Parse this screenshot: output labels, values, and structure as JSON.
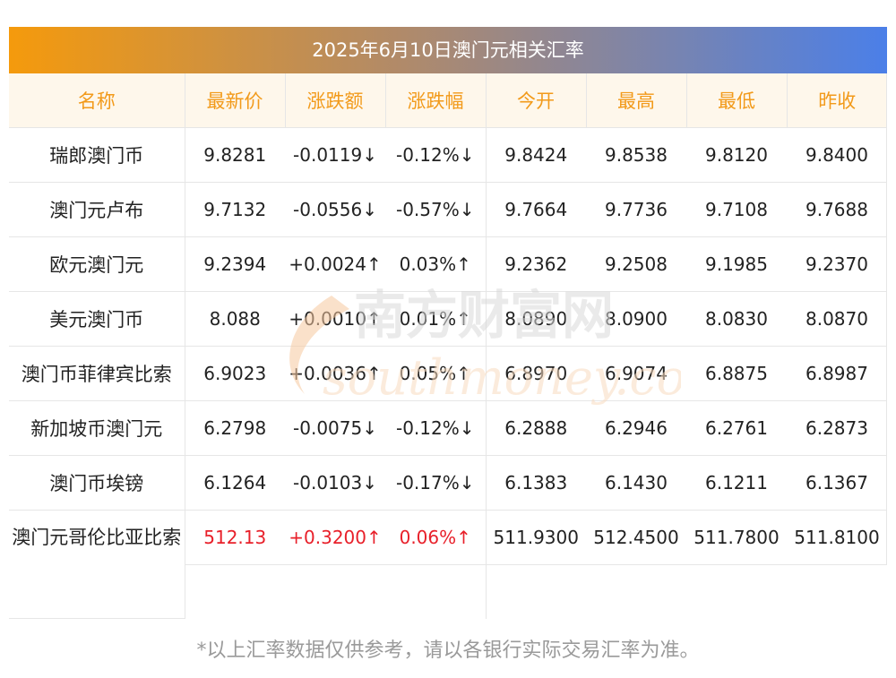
{
  "title": "2025年6月10日澳门元相关汇率",
  "headers": [
    "名称",
    "最新价",
    "涨跌额",
    "涨跌幅",
    "今开",
    "最高",
    "最低",
    "昨收"
  ],
  "rows": [
    {
      "name": "瑞郎澳门币",
      "latest": "9.8281",
      "change": "-0.0119↓",
      "pct": "-0.12%↓",
      "open": "9.8424",
      "high": "9.8538",
      "low": "9.8120",
      "prev": "9.8400",
      "dir": "down"
    },
    {
      "name": "澳门元卢布",
      "latest": "9.7132",
      "change": "-0.0556↓",
      "pct": "-0.57%↓",
      "open": "9.7664",
      "high": "9.7736",
      "low": "9.7108",
      "prev": "9.7688",
      "dir": "down"
    },
    {
      "name": "欧元澳门元",
      "latest": "9.2394",
      "change": "+0.0024↑",
      "pct": "0.03%↑",
      "open": "9.2362",
      "high": "9.2508",
      "low": "9.1985",
      "prev": "9.2370",
      "dir": "up"
    },
    {
      "name": "美元澳门币",
      "latest": "8.088",
      "change": "+0.0010↑",
      "pct": "0.01%↑",
      "open": "8.0890",
      "high": "8.0900",
      "low": "8.0830",
      "prev": "8.0870",
      "dir": "up"
    },
    {
      "name": "澳门币菲律宾比索",
      "latest": "6.9023",
      "change": "+0.0036↑",
      "pct": "0.05%↑",
      "open": "6.8970",
      "high": "6.9074",
      "low": "6.8875",
      "prev": "6.8987",
      "dir": "up"
    },
    {
      "name": "新加坡币澳门元",
      "latest": "6.2798",
      "change": "-0.0075↓",
      "pct": "-0.12%↓",
      "open": "6.2888",
      "high": "6.2946",
      "low": "6.2761",
      "prev": "6.2873",
      "dir": "down"
    },
    {
      "name": "澳门币埃镑",
      "latest": "6.1264",
      "change": "-0.0103↓",
      "pct": "-0.17%↓",
      "open": "6.1383",
      "high": "6.1430",
      "low": "6.1211",
      "prev": "6.1367",
      "dir": "down"
    },
    {
      "name": "澳门元哥伦比亚比索",
      "latest": "512.13",
      "change": "+0.3200↑",
      "pct": "0.06%↑",
      "open": "511.9300",
      "high": "512.4500",
      "low": "511.7800",
      "prev": "511.8100",
      "dir": "up"
    }
  ],
  "watermark": {
    "cn": "南方财富网",
    "en": "southmoney.com"
  },
  "footer": "*以上汇率数据仅供参考，请以各银行实际交易汇率为准。",
  "colors": {
    "up": "#e8202a",
    "down": "#2b8a2b",
    "header_text": "#f29a1a",
    "header_bg": "#fef7eb"
  }
}
